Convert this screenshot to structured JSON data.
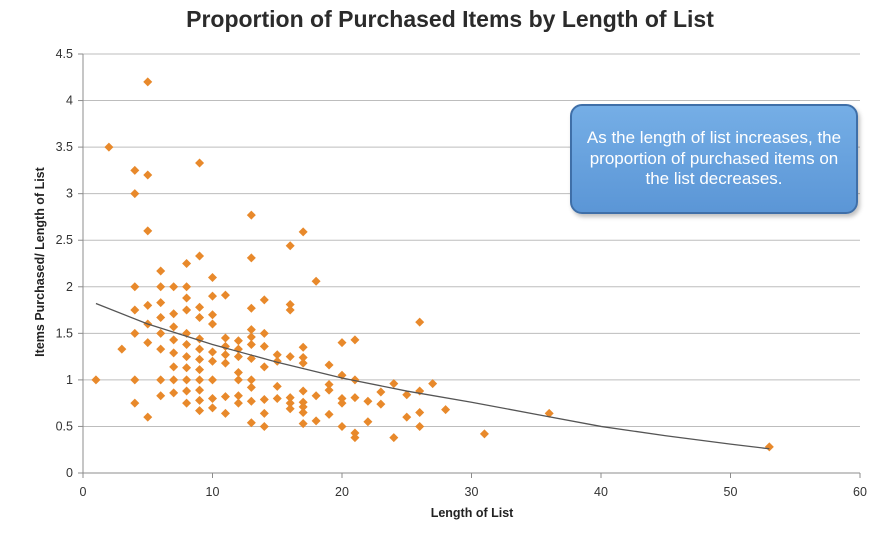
{
  "chart_data": {
    "type": "scatter",
    "title": "Proportion of Purchased Items by Length of List",
    "xlabel": "Length of List",
    "ylabel": "Items Purchased/ Length of List",
    "xlim": [
      0,
      60
    ],
    "ylim": [
      0,
      4.5
    ],
    "xticks": [
      0,
      10,
      20,
      30,
      40,
      50,
      60
    ],
    "yticks": [
      0,
      0.5,
      1,
      1.5,
      2,
      2.5,
      3,
      3.5,
      4,
      4.5
    ],
    "ytick_labels": [
      "0",
      "0.5",
      "1",
      "1.5",
      "2",
      "2.5",
      "3",
      "3.5",
      "4",
      "4.5"
    ],
    "grid": "horizontal",
    "marker_color": "#e8892b",
    "trendline_color": "#555555",
    "annotation": "As the length of list increases, the proportion of purchased items on the list decreases.",
    "trendline": {
      "type": "exponential",
      "points": [
        [
          1,
          1.82
        ],
        [
          5,
          1.6
        ],
        [
          10,
          1.38
        ],
        [
          15,
          1.19
        ],
        [
          20,
          1.02
        ],
        [
          25,
          0.88
        ],
        [
          30,
          0.76
        ],
        [
          35,
          0.63
        ],
        [
          40,
          0.5
        ],
        [
          45,
          0.4
        ],
        [
          50,
          0.31
        ],
        [
          53,
          0.26
        ]
      ]
    },
    "points": [
      [
        1,
        1.0
      ],
      [
        2,
        3.5
      ],
      [
        3,
        1.33
      ],
      [
        4,
        3.25
      ],
      [
        4,
        3.0
      ],
      [
        4,
        2.0
      ],
      [
        4,
        1.75
      ],
      [
        4,
        1.5
      ],
      [
        4,
        1.0
      ],
      [
        4,
        0.75
      ],
      [
        5,
        4.2
      ],
      [
        5,
        3.2
      ],
      [
        5,
        2.6
      ],
      [
        5,
        1.8
      ],
      [
        5,
        1.6
      ],
      [
        5,
        1.4
      ],
      [
        5,
        0.6
      ],
      [
        6,
        2.17
      ],
      [
        6,
        2.0
      ],
      [
        6,
        1.83
      ],
      [
        6,
        1.67
      ],
      [
        6,
        1.5
      ],
      [
        6,
        1.33
      ],
      [
        6,
        1.0
      ],
      [
        6,
        0.83
      ],
      [
        7,
        2.0
      ],
      [
        7,
        1.71
      ],
      [
        7,
        1.57
      ],
      [
        7,
        1.43
      ],
      [
        7,
        1.29
      ],
      [
        7,
        1.14
      ],
      [
        7,
        1.0
      ],
      [
        7,
        0.86
      ],
      [
        8,
        2.25
      ],
      [
        8,
        2.0
      ],
      [
        8,
        1.88
      ],
      [
        8,
        1.75
      ],
      [
        8,
        1.5
      ],
      [
        8,
        1.38
      ],
      [
        8,
        1.25
      ],
      [
        8,
        1.13
      ],
      [
        8,
        1.0
      ],
      [
        8,
        0.88
      ],
      [
        8,
        0.75
      ],
      [
        9,
        3.33
      ],
      [
        9,
        2.33
      ],
      [
        9,
        1.78
      ],
      [
        9,
        1.67
      ],
      [
        9,
        1.44
      ],
      [
        9,
        1.33
      ],
      [
        9,
        1.22
      ],
      [
        9,
        1.11
      ],
      [
        9,
        1.0
      ],
      [
        9,
        0.89
      ],
      [
        9,
        0.78
      ],
      [
        9,
        0.67
      ],
      [
        10,
        2.1
      ],
      [
        10,
        1.9
      ],
      [
        10,
        1.7
      ],
      [
        10,
        1.6
      ],
      [
        10,
        1.3
      ],
      [
        10,
        1.2
      ],
      [
        10,
        1.0
      ],
      [
        10,
        0.8
      ],
      [
        10,
        0.7
      ],
      [
        11,
        1.91
      ],
      [
        11,
        1.45
      ],
      [
        11,
        1.36
      ],
      [
        11,
        1.27
      ],
      [
        11,
        1.18
      ],
      [
        11,
        0.82
      ],
      [
        11,
        0.64
      ],
      [
        12,
        1.42
      ],
      [
        12,
        1.33
      ],
      [
        12,
        1.25
      ],
      [
        12,
        1.08
      ],
      [
        12,
        1.0
      ],
      [
        12,
        0.83
      ],
      [
        12,
        0.75
      ],
      [
        13,
        2.77
      ],
      [
        13,
        2.31
      ],
      [
        13,
        1.77
      ],
      [
        13,
        1.54
      ],
      [
        13,
        1.46
      ],
      [
        13,
        1.38
      ],
      [
        13,
        1.23
      ],
      [
        13,
        1.0
      ],
      [
        13,
        0.92
      ],
      [
        13,
        0.77
      ],
      [
        13,
        0.54
      ],
      [
        14,
        1.86
      ],
      [
        14,
        1.5
      ],
      [
        14,
        1.36
      ],
      [
        14,
        1.14
      ],
      [
        14,
        0.79
      ],
      [
        14,
        0.64
      ],
      [
        14,
        0.5
      ],
      [
        15,
        1.27
      ],
      [
        15,
        1.2
      ],
      [
        15,
        0.93
      ],
      [
        15,
        0.8
      ],
      [
        16,
        2.44
      ],
      [
        16,
        1.81
      ],
      [
        16,
        1.75
      ],
      [
        16,
        1.25
      ],
      [
        16,
        0.81
      ],
      [
        16,
        0.75
      ],
      [
        16,
        0.69
      ],
      [
        17,
        2.59
      ],
      [
        17,
        1.35
      ],
      [
        17,
        1.24
      ],
      [
        17,
        1.18
      ],
      [
        17,
        0.88
      ],
      [
        17,
        0.76
      ],
      [
        17,
        0.71
      ],
      [
        17,
        0.65
      ],
      [
        17,
        0.53
      ],
      [
        18,
        2.06
      ],
      [
        18,
        0.83
      ],
      [
        18,
        0.56
      ],
      [
        19,
        1.16
      ],
      [
        19,
        0.95
      ],
      [
        19,
        0.89
      ],
      [
        19,
        0.63
      ],
      [
        20,
        1.4
      ],
      [
        20,
        1.05
      ],
      [
        20,
        0.8
      ],
      [
        20,
        0.75
      ],
      [
        20,
        0.5
      ],
      [
        21,
        1.43
      ],
      [
        21,
        1.0
      ],
      [
        21,
        0.81
      ],
      [
        21,
        0.43
      ],
      [
        21,
        0.38
      ],
      [
        22,
        0.77
      ],
      [
        22,
        0.55
      ],
      [
        23,
        0.87
      ],
      [
        23,
        0.74
      ],
      [
        24,
        0.96
      ],
      [
        24,
        0.38
      ],
      [
        25,
        0.84
      ],
      [
        25,
        0.6
      ],
      [
        26,
        1.62
      ],
      [
        26,
        0.88
      ],
      [
        26,
        0.65
      ],
      [
        26,
        0.5
      ],
      [
        27,
        0.96
      ],
      [
        28,
        0.68
      ],
      [
        31,
        0.42
      ],
      [
        36,
        0.64
      ],
      [
        53,
        0.28
      ]
    ]
  }
}
